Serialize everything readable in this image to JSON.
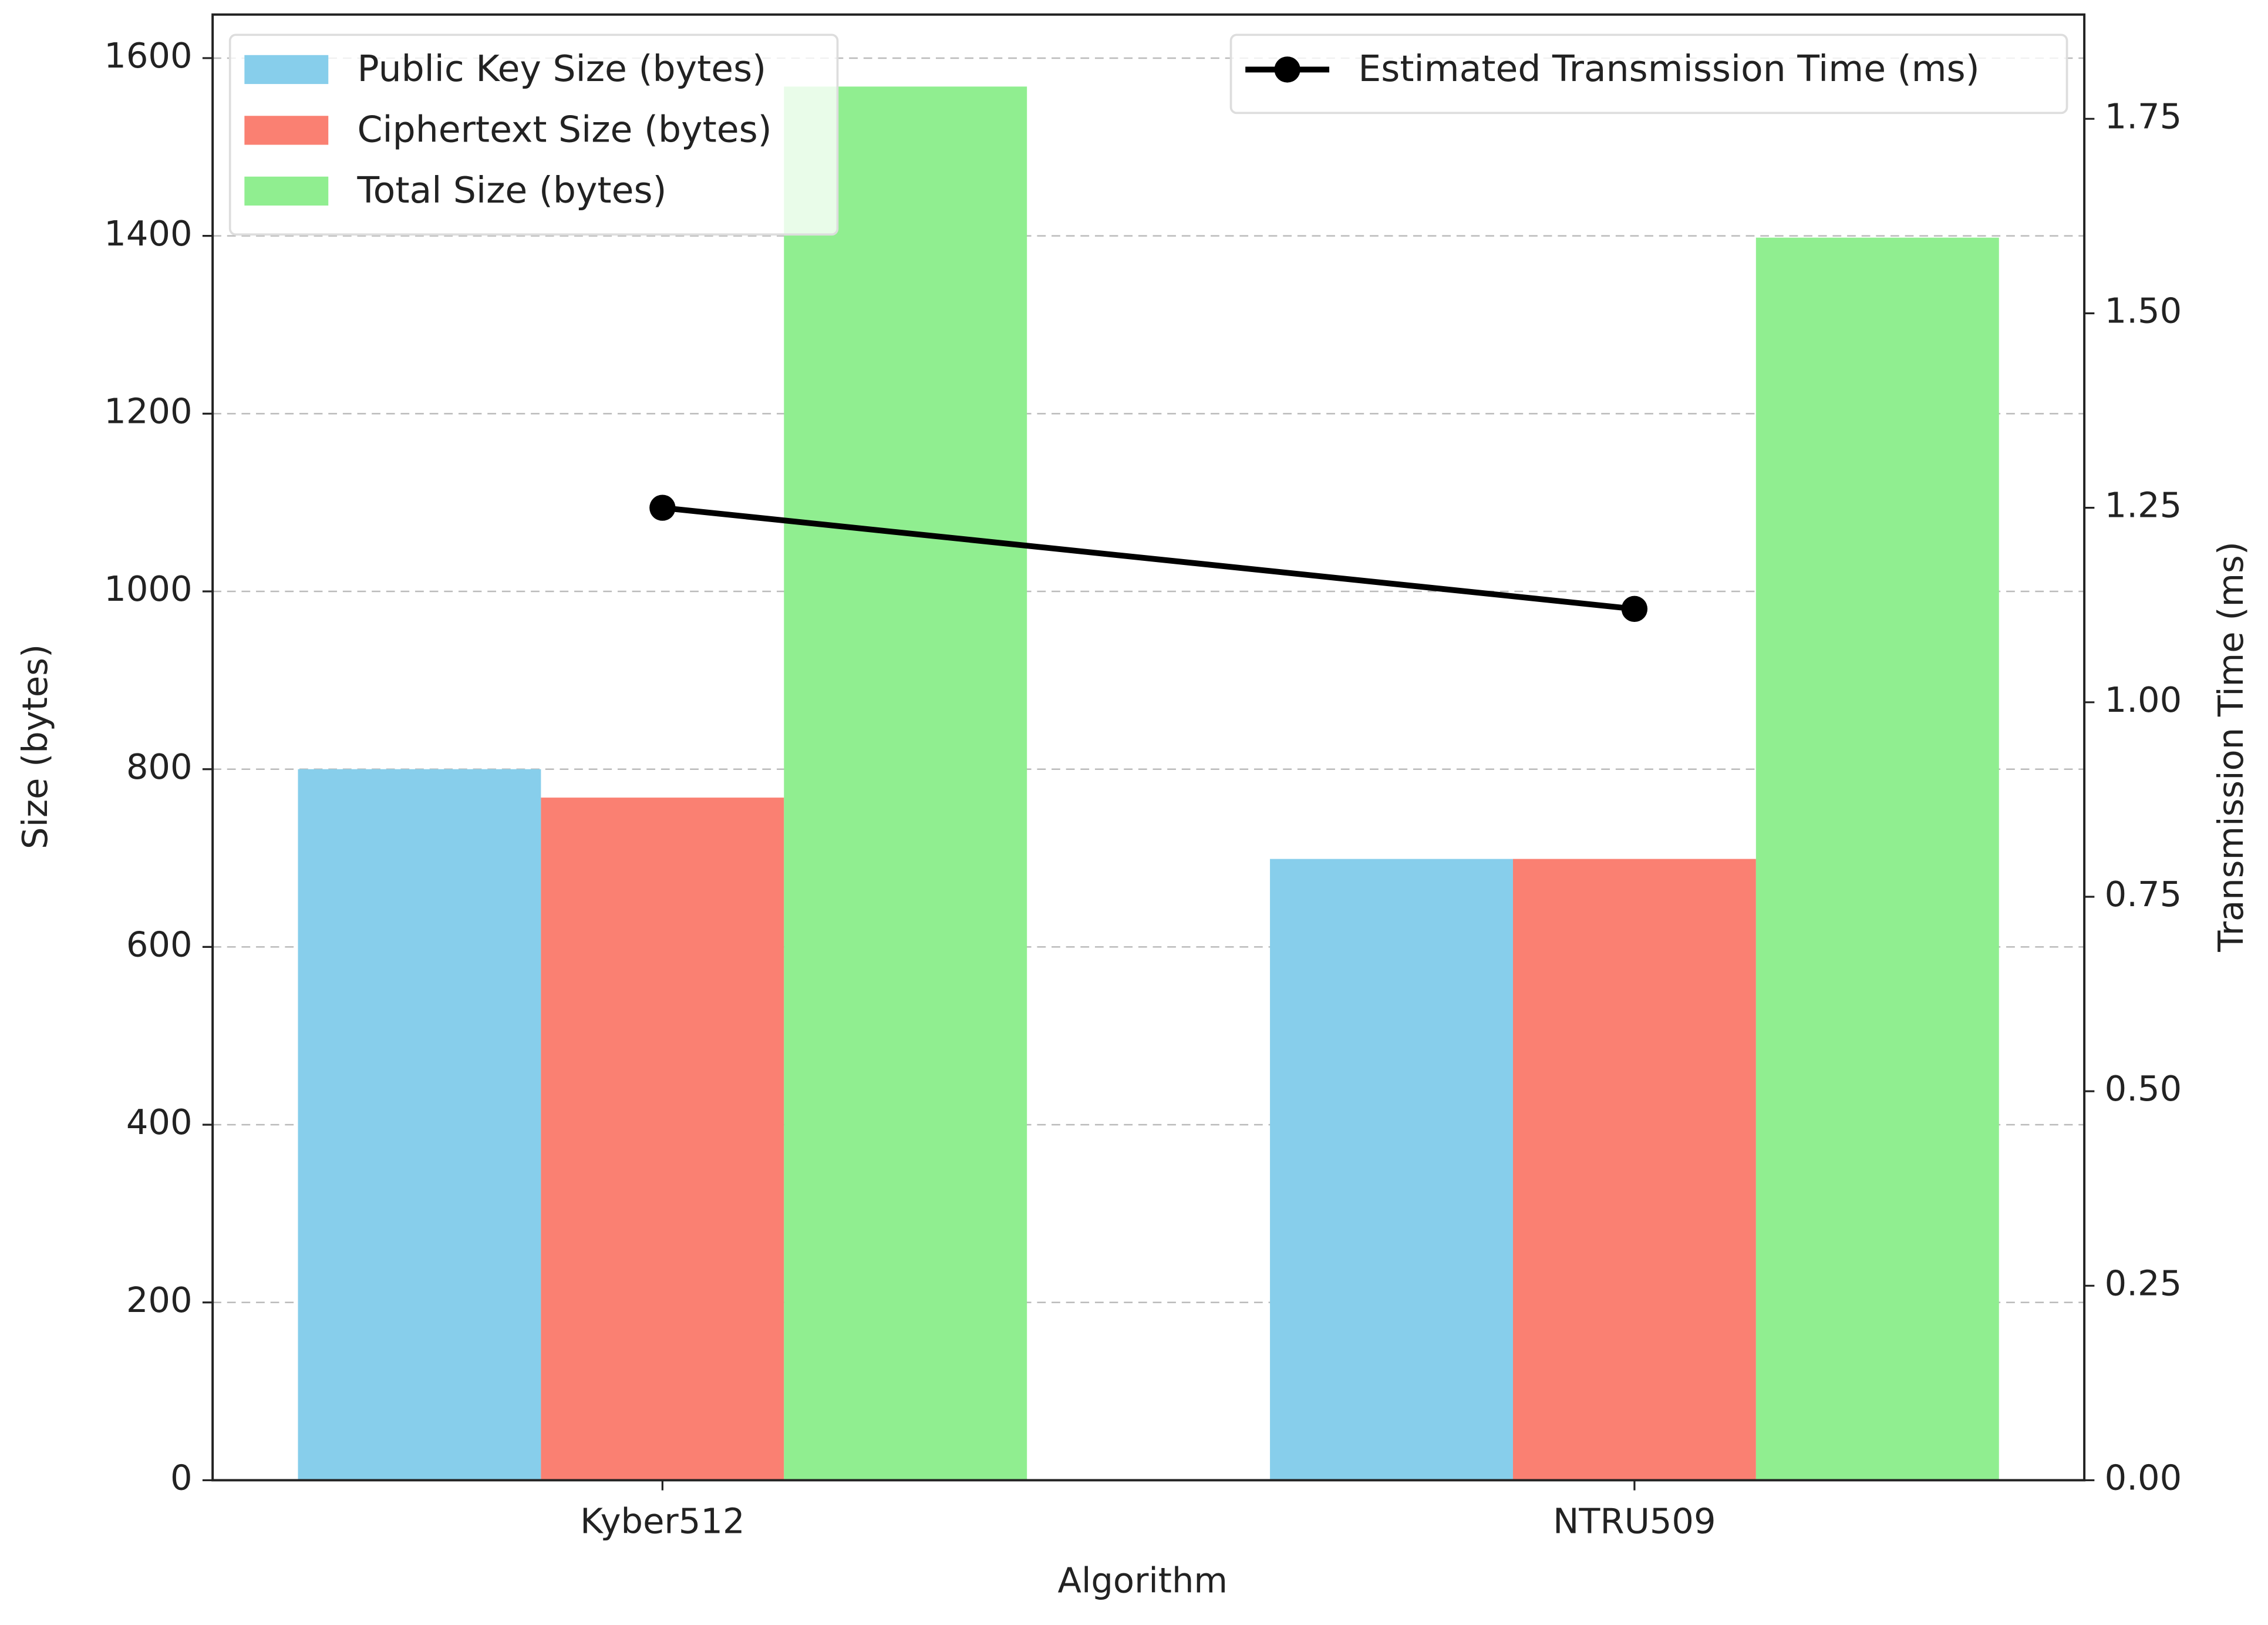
{
  "chart_data": {
    "type": "bar",
    "xlabel": "Algorithm",
    "ylabel": "Size (bytes)",
    "y2label": "Transmission Time (ms)",
    "categories": [
      "Kyber512",
      "NTRU509"
    ],
    "series": [
      {
        "name": "Public Key Size (bytes)",
        "color": "#87ceeb",
        "values": [
          800,
          699
        ]
      },
      {
        "name": "Ciphertext Size (bytes)",
        "color": "#fa8072",
        "values": [
          768,
          699
        ]
      },
      {
        "name": "Total Size (bytes)",
        "color": "#90ee90",
        "values": [
          1568,
          1398
        ]
      },
      {
        "name": "Estimated Transmission Time (ms)",
        "color": "#000000",
        "type": "line",
        "axis": "y2",
        "values": [
          1.25,
          1.12
        ]
      }
    ],
    "ylim": [
      0,
      1649
    ],
    "yticks": [
      0,
      200,
      400,
      600,
      800,
      1000,
      1200,
      1400,
      1600
    ],
    "y2lim": [
      0,
      1.884
    ],
    "y2ticks": [
      {
        "value": 0,
        "label": "0.00"
      },
      0.25,
      {
        "value": 0.5,
        "label": "0.50"
      },
      0.75,
      {
        "value": 1,
        "label": "1.00"
      },
      1.25,
      {
        "value": 1.5,
        "label": "1.50"
      },
      1.75
    ],
    "grid": true,
    "legend": "upper left",
    "legend2": "upper right"
  }
}
